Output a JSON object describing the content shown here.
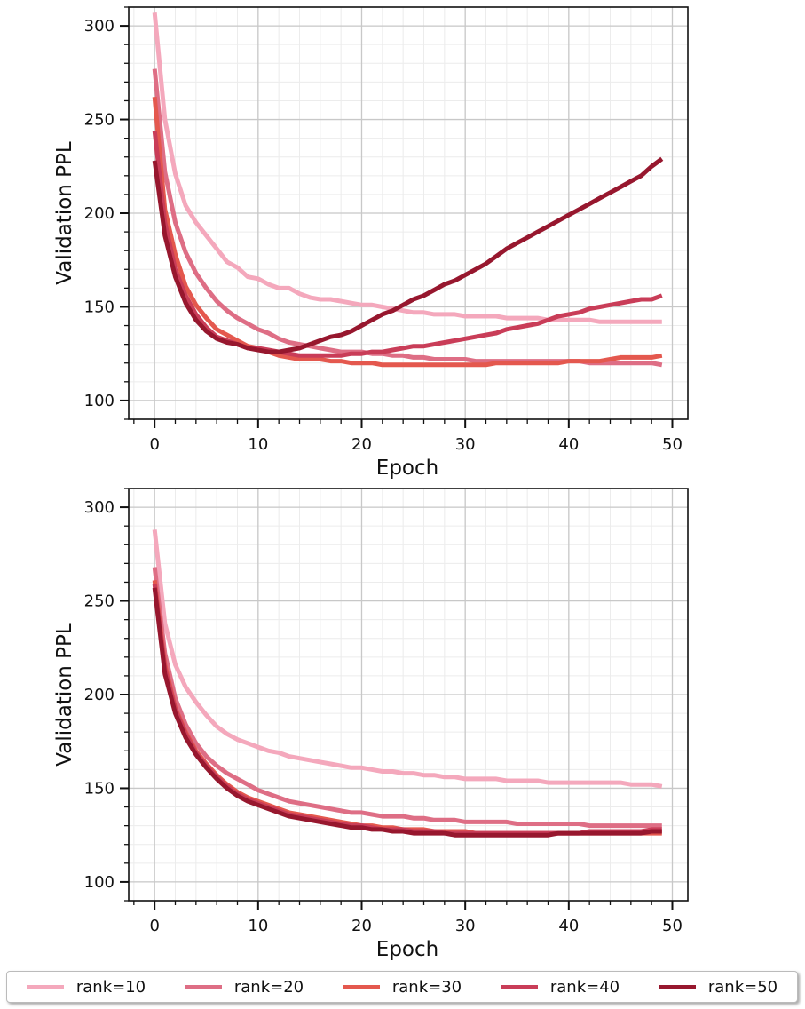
{
  "chart_data": [
    {
      "type": "line",
      "xlabel": "Epoch",
      "ylabel": "Validation PPL",
      "xlim": [
        -2.5,
        51.5
      ],
      "ylim": [
        90,
        310
      ],
      "xticks": [
        0,
        10,
        20,
        30,
        40,
        50
      ],
      "yticks": [
        100,
        150,
        200,
        250,
        300
      ],
      "grid": true,
      "series": [
        {
          "name": "rank=10",
          "color": "#f4a8bc",
          "values": [
            307,
            250,
            221,
            204,
            195,
            188,
            181,
            174,
            171,
            166,
            165,
            162,
            160,
            160,
            157,
            155,
            154,
            154,
            153,
            152,
            151,
            151,
            150,
            149,
            148,
            147,
            147,
            146,
            146,
            146,
            145,
            145,
            145,
            145,
            144,
            144,
            144,
            144,
            143,
            143,
            143,
            143,
            143,
            142,
            142,
            142,
            142,
            142,
            142,
            142
          ]
        },
        {
          "name": "rank=20",
          "color": "#de6e85",
          "values": [
            277,
            222,
            195,
            179,
            168,
            160,
            153,
            148,
            144,
            141,
            138,
            136,
            133,
            131,
            130,
            129,
            128,
            127,
            126,
            126,
            126,
            125,
            125,
            124,
            124,
            123,
            123,
            122,
            122,
            122,
            122,
            121,
            121,
            121,
            121,
            121,
            121,
            121,
            121,
            121,
            121,
            121,
            120,
            120,
            120,
            120,
            120,
            120,
            120,
            119
          ]
        },
        {
          "name": "rank=30",
          "color": "#e4584e",
          "values": [
            262,
            202,
            178,
            161,
            151,
            144,
            138,
            135,
            132,
            129,
            128,
            126,
            124,
            123,
            122,
            122,
            122,
            121,
            121,
            120,
            120,
            120,
            119,
            119,
            119,
            119,
            119,
            119,
            119,
            119,
            119,
            119,
            119,
            120,
            120,
            120,
            120,
            120,
            120,
            120,
            121,
            121,
            121,
            121,
            122,
            123,
            123,
            123,
            123,
            124
          ]
        },
        {
          "name": "rank=40",
          "color": "#c93d58",
          "values": [
            244,
            195,
            170,
            156,
            146,
            139,
            134,
            132,
            130,
            128,
            128,
            127,
            126,
            125,
            124,
            124,
            124,
            124,
            124,
            125,
            125,
            126,
            126,
            127,
            128,
            129,
            129,
            130,
            131,
            132,
            133,
            134,
            135,
            136,
            138,
            139,
            140,
            141,
            143,
            145,
            146,
            147,
            149,
            150,
            151,
            152,
            153,
            154,
            154,
            156
          ]
        },
        {
          "name": "rank=50",
          "color": "#97172e",
          "values": [
            228,
            188,
            166,
            152,
            143,
            137,
            133,
            131,
            130,
            128,
            127,
            126,
            126,
            127,
            128,
            130,
            132,
            134,
            135,
            137,
            140,
            143,
            146,
            148,
            151,
            154,
            156,
            159,
            162,
            164,
            167,
            170,
            173,
            177,
            181,
            184,
            187,
            190,
            193,
            196,
            199,
            202,
            205,
            208,
            211,
            214,
            217,
            220,
            225,
            229
          ]
        }
      ]
    },
    {
      "type": "line",
      "xlabel": "Epoch",
      "ylabel": "Validation PPL",
      "xlim": [
        -2.5,
        51.5
      ],
      "ylim": [
        90,
        310
      ],
      "xticks": [
        0,
        10,
        20,
        30,
        40,
        50
      ],
      "yticks": [
        100,
        150,
        200,
        250,
        300
      ],
      "grid": true,
      "series": [
        {
          "name": "rank=10",
          "color": "#f4a8bc",
          "values": [
            288,
            238,
            216,
            204,
            196,
            189,
            183,
            179,
            176,
            174,
            172,
            170,
            169,
            167,
            166,
            165,
            164,
            163,
            162,
            161,
            161,
            160,
            159,
            159,
            158,
            158,
            157,
            157,
            156,
            156,
            155,
            155,
            155,
            155,
            154,
            154,
            154,
            154,
            153,
            153,
            153,
            153,
            153,
            153,
            153,
            153,
            152,
            152,
            152,
            151
          ]
        },
        {
          "name": "rank=20",
          "color": "#de6e85",
          "values": [
            268,
            222,
            198,
            184,
            174,
            167,
            162,
            158,
            155,
            152,
            149,
            147,
            145,
            143,
            142,
            141,
            140,
            139,
            138,
            137,
            137,
            136,
            135,
            135,
            135,
            134,
            134,
            133,
            133,
            133,
            132,
            132,
            132,
            132,
            132,
            131,
            131,
            131,
            131,
            131,
            131,
            131,
            130,
            130,
            130,
            130,
            130,
            130,
            130,
            130
          ]
        },
        {
          "name": "rank=30",
          "color": "#e4584e",
          "values": [
            261,
            216,
            193,
            180,
            170,
            163,
            157,
            152,
            148,
            145,
            143,
            141,
            139,
            137,
            136,
            135,
            134,
            133,
            132,
            131,
            130,
            130,
            129,
            129,
            128,
            128,
            128,
            127,
            127,
            127,
            127,
            126,
            126,
            126,
            126,
            126,
            126,
            126,
            126,
            126,
            126,
            126,
            126,
            126,
            126,
            126,
            126,
            126,
            126,
            126
          ]
        },
        {
          "name": "rank=40",
          "color": "#c93d58",
          "values": [
            259,
            214,
            192,
            179,
            169,
            162,
            156,
            151,
            147,
            144,
            142,
            140,
            138,
            136,
            135,
            134,
            133,
            132,
            131,
            130,
            130,
            129,
            128,
            128,
            128,
            127,
            127,
            127,
            126,
            126,
            126,
            126,
            126,
            126,
            126,
            126,
            126,
            126,
            126,
            126,
            126,
            126,
            127,
            127,
            127,
            127,
            127,
            127,
            128,
            128
          ]
        },
        {
          "name": "rank=50",
          "color": "#97172e",
          "values": [
            257,
            211,
            190,
            177,
            168,
            161,
            155,
            150,
            146,
            143,
            141,
            139,
            137,
            135,
            134,
            133,
            132,
            131,
            130,
            129,
            129,
            128,
            128,
            127,
            127,
            126,
            126,
            126,
            126,
            125,
            125,
            125,
            125,
            125,
            125,
            125,
            125,
            125,
            125,
            126,
            126,
            126,
            126,
            126,
            126,
            126,
            126,
            126,
            127,
            127
          ]
        }
      ]
    }
  ],
  "legend": {
    "placement": "bottom",
    "items": [
      {
        "label": "rank=10",
        "color": "#f4a8bc"
      },
      {
        "label": "rank=20",
        "color": "#de6e85"
      },
      {
        "label": "rank=30",
        "color": "#e4584e"
      },
      {
        "label": "rank=40",
        "color": "#c93d58"
      },
      {
        "label": "rank=50",
        "color": "#97172e"
      }
    ]
  }
}
